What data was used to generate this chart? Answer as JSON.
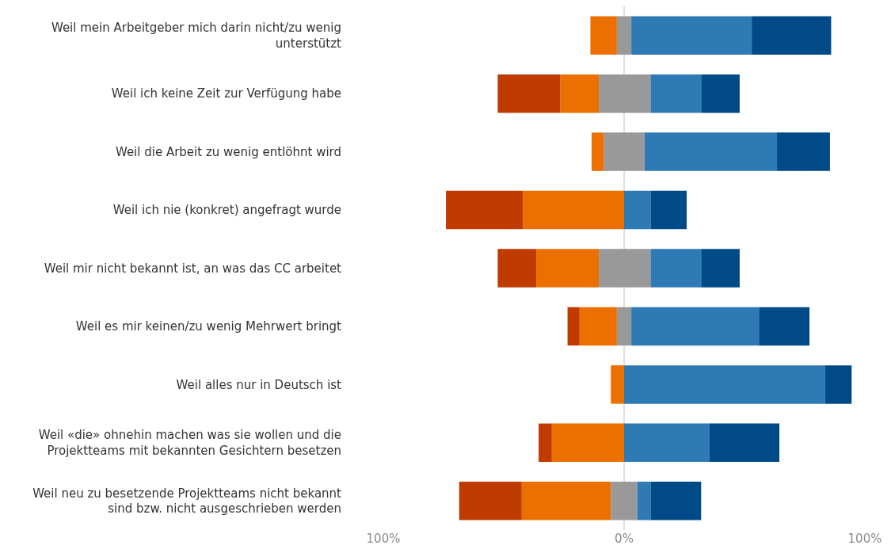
{
  "chart_data": {
    "type": "bar",
    "orientation": "horizontal",
    "stacked": true,
    "grid": "x",
    "categories": [
      "Weil mein Arbeitgeber mich darin nicht/zu wenig unterstützt",
      "Weil ich keine Zeit zur Verfügung habe",
      "Weil die Arbeit zu wenig entlöhnt wird",
      "Weil ich nie (konkret) angefragt wurde",
      "Weil mir nicht bekannt ist, an was das CC arbeitet",
      "Weil es mir keinen/zu wenig Mehrwert bringt",
      "Weil alles nur in Deutsch ist",
      "Weil «die» ohnehin machen was sie wollen und die Projektteams mit bekannten Gesichtern besetzen",
      "Weil neu zu besetzende Projektteams nicht bekannt sind bzw. nicht ausgeschrieben werden"
    ],
    "series": [
      {
        "color": "#999999",
        "values": [
          -3,
          -10.5,
          -8.5,
          0,
          -10.5,
          -3,
          0,
          0,
          -5.5
        ]
      },
      {
        "color": "#ec7000",
        "values": [
          -11,
          -16,
          -5,
          -42,
          -26,
          -15.5,
          -5.5,
          -30,
          -37
        ]
      },
      {
        "color": "#bf3b00",
        "values": [
          0,
          -26,
          0,
          -32,
          -16,
          -5,
          0,
          -5.5,
          -26
        ]
      },
      {
        "color": "#999999",
        "values": [
          3,
          11,
          8.5,
          0,
          11,
          3,
          0,
          0,
          5.5
        ]
      },
      {
        "color": "#2e7ab5",
        "values": [
          50,
          21,
          55,
          11,
          21,
          53,
          83.5,
          35.5,
          5.5
        ]
      },
      {
        "color": "#004a87",
        "values": [
          33,
          16,
          22,
          15,
          16,
          21,
          11,
          29,
          21
        ]
      }
    ],
    "xlim": [
      -100,
      100
    ],
    "xticks": [
      {
        "value": -100,
        "label": "100%"
      },
      {
        "value": 0,
        "label": "0%"
      },
      {
        "value": 100,
        "label": "100%"
      }
    ]
  }
}
